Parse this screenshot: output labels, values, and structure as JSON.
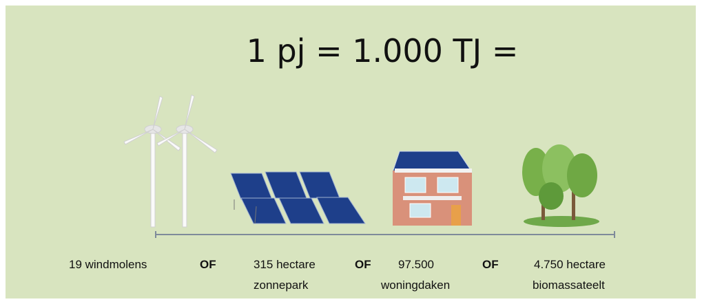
{
  "title": "1 pj = 1.000 TJ =",
  "items": [
    {
      "lines": [
        "19 windmolens"
      ]
    },
    {
      "lines": [
        "315 hectare",
        "zonnepark"
      ]
    },
    {
      "lines": [
        "97.500",
        "woningdaken"
      ]
    },
    {
      "lines": [
        "4.750 hectare",
        "biomassateelt"
      ]
    }
  ],
  "separators": [
    "OF",
    "OF",
    "OF"
  ]
}
